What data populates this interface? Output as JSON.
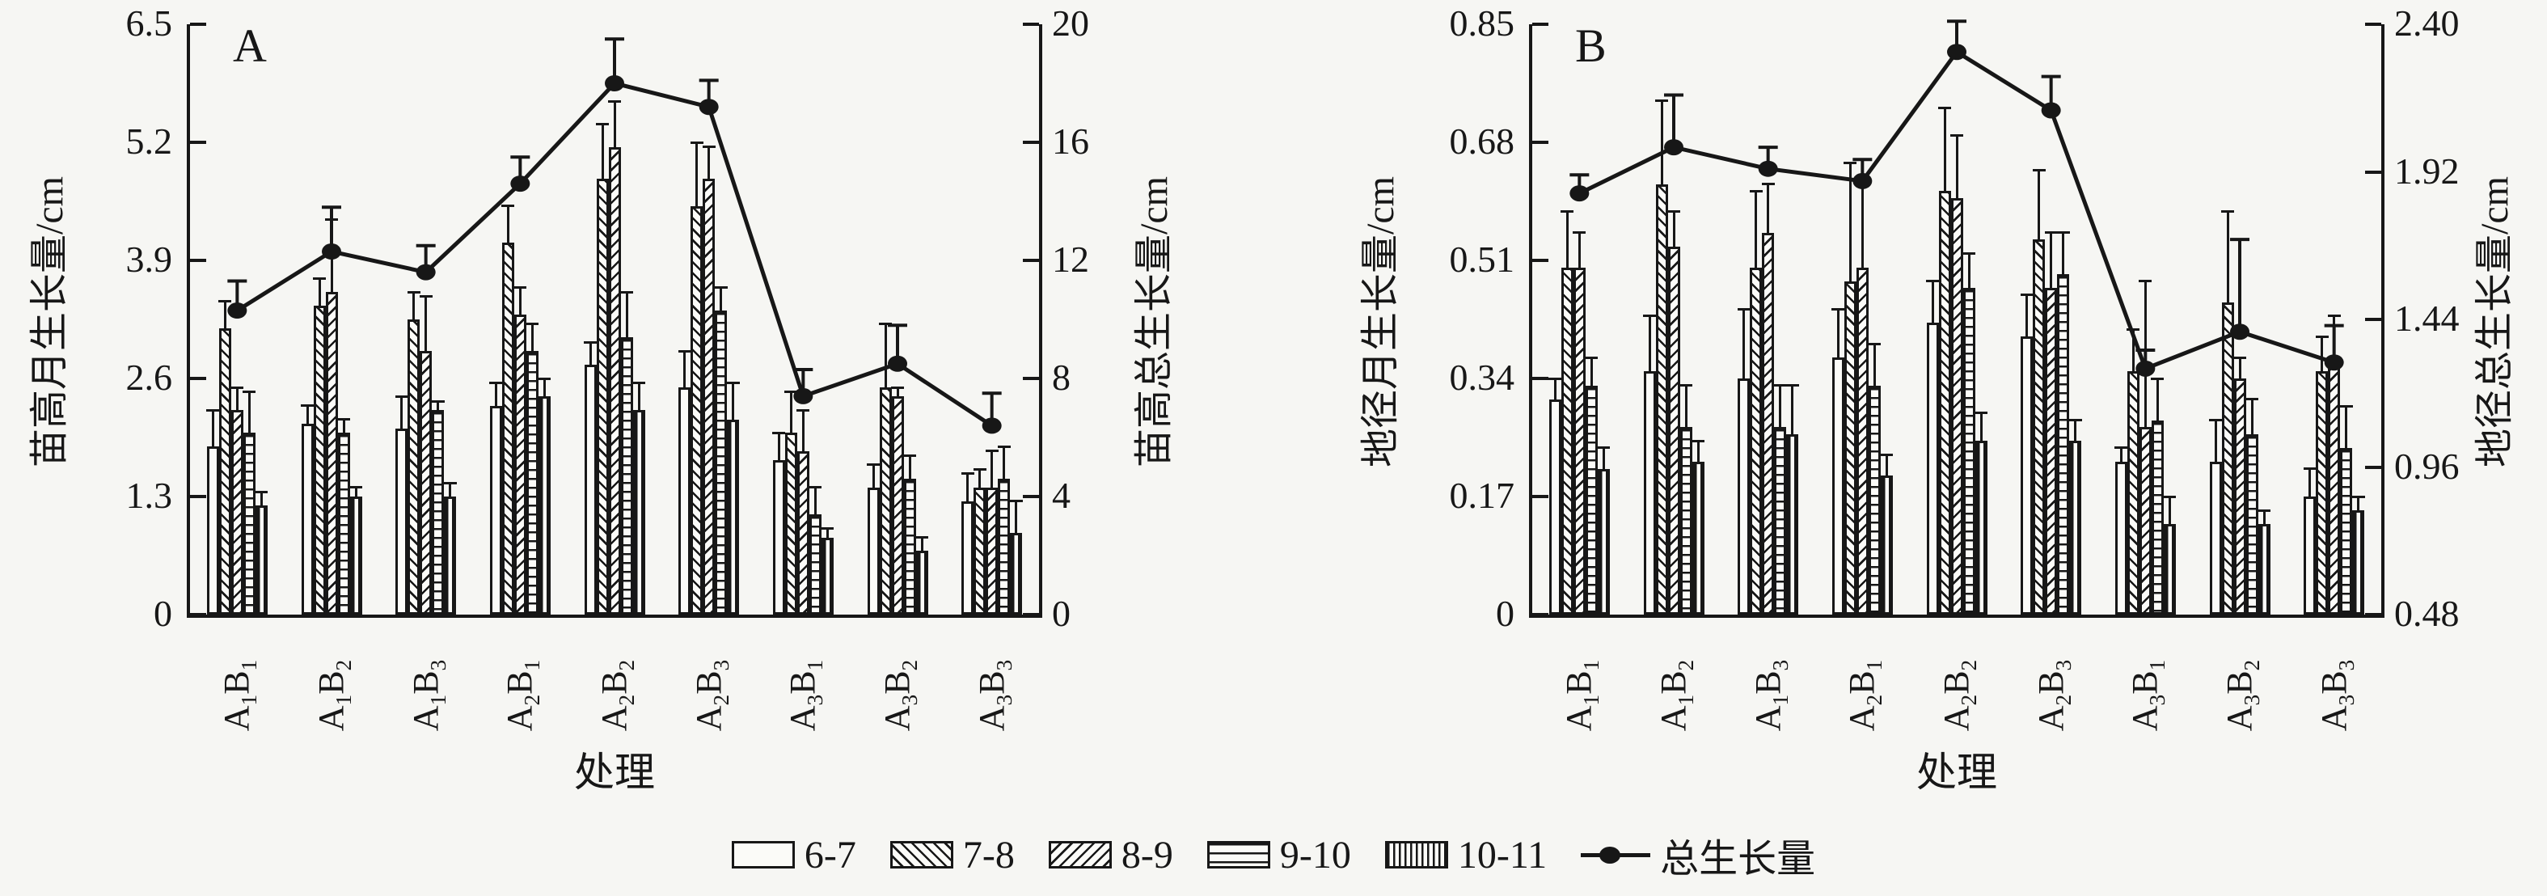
{
  "figure": {
    "background": "#f6f6f3",
    "ink_color": "#171717",
    "legend": {
      "line_label": "总生长量",
      "items": [
        {
          "label": "6-7",
          "pattern": "plain"
        },
        {
          "label": "7-8",
          "pattern": "diagonal-backslash"
        },
        {
          "label": "8-9",
          "pattern": "diagonal-slash"
        },
        {
          "label": "9-10",
          "pattern": "horizontal-lines"
        },
        {
          "label": "10-11",
          "pattern": "vertical-lines"
        }
      ]
    }
  },
  "chart_data": [
    {
      "type": "bar",
      "panel": "A",
      "title": "A",
      "xlabel": "处理",
      "categories": [
        "A1B1",
        "A1B2",
        "A1B3",
        "A2B1",
        "A2B2",
        "A2B3",
        "A3B1",
        "A3B2",
        "A3B3"
      ],
      "left_axis": {
        "label": "苗高月生长量/cm",
        "min": 0,
        "max": 6.5,
        "ticks": [
          "6.5",
          "5.2",
          "3.9",
          "2.6",
          "1.3",
          "0"
        ]
      },
      "right_axis": {
        "label": "苗高总生长量/cm",
        "min": 0,
        "max": 20,
        "ticks": [
          "20",
          "16",
          "12",
          "8",
          "4",
          "0"
        ]
      },
      "series": [
        {
          "name": "6-7",
          "values": [
            1.85,
            2.1,
            2.05,
            2.3,
            2.75,
            2.5,
            1.7,
            1.4,
            1.25
          ],
          "errors": [
            0.4,
            0.2,
            0.35,
            0.25,
            0.25,
            0.4,
            0.3,
            0.25,
            0.3
          ]
        },
        {
          "name": "7-8",
          "values": [
            3.15,
            3.4,
            3.25,
            4.1,
            4.8,
            4.5,
            2.0,
            2.5,
            1.4
          ],
          "errors": [
            0.3,
            0.3,
            0.3,
            0.4,
            0.6,
            0.7,
            0.45,
            0.7,
            0.2
          ]
        },
        {
          "name": "8-9",
          "values": [
            2.25,
            3.55,
            2.9,
            3.3,
            5.15,
            4.8,
            1.8,
            2.4,
            1.4
          ],
          "errors": [
            0.25,
            0.8,
            0.6,
            0.3,
            0.5,
            0.35,
            0.45,
            0.1,
            0.4
          ]
        },
        {
          "name": "9-10",
          "values": [
            2.0,
            2.0,
            2.25,
            2.9,
            3.05,
            3.35,
            1.1,
            1.5,
            1.5
          ],
          "errors": [
            0.45,
            0.15,
            0.1,
            0.3,
            0.5,
            0.25,
            0.3,
            0.25,
            0.35
          ]
        },
        {
          "name": "10-11",
          "values": [
            1.2,
            1.3,
            1.3,
            2.4,
            2.25,
            2.15,
            0.85,
            0.7,
            0.9
          ],
          "errors": [
            0.15,
            0.1,
            0.15,
            0.2,
            0.3,
            0.4,
            0.1,
            0.15,
            0.35
          ]
        }
      ],
      "line": {
        "name": "总生长量",
        "axis": "right",
        "values": [
          10.3,
          12.3,
          11.6,
          14.6,
          18.0,
          17.2,
          7.4,
          8.5,
          6.4
        ],
        "errors": [
          1.0,
          1.5,
          0.9,
          0.9,
          1.5,
          0.9,
          0.9,
          1.3,
          1.1
        ]
      }
    },
    {
      "type": "bar",
      "panel": "B",
      "title": "B",
      "xlabel": "处理",
      "categories": [
        "A1B1",
        "A1B2",
        "A1B3",
        "A2B1",
        "A2B2",
        "A2B3",
        "A3B1",
        "A3B2",
        "A3B3"
      ],
      "left_axis": {
        "label": "地径月生长量/cm",
        "min": 0,
        "max": 0.85,
        "ticks": [
          "0.85",
          "0.68",
          "0.51",
          "0.34",
          "0.17",
          "0"
        ]
      },
      "right_axis": {
        "label": "地径总生长量/cm",
        "min": 0.48,
        "max": 2.4,
        "ticks": [
          "2.40",
          "1.92",
          "1.44",
          "0.96",
          "0.48"
        ]
      },
      "series": [
        {
          "name": "6-7",
          "values": [
            0.31,
            0.35,
            0.34,
            0.37,
            0.42,
            0.4,
            0.22,
            0.22,
            0.17
          ],
          "errors": [
            0.03,
            0.08,
            0.1,
            0.07,
            0.06,
            0.06,
            0.02,
            0.06,
            0.04
          ]
        },
        {
          "name": "7-8",
          "values": [
            0.5,
            0.62,
            0.5,
            0.48,
            0.61,
            0.54,
            0.35,
            0.45,
            0.35
          ],
          "errors": [
            0.08,
            0.12,
            0.11,
            0.17,
            0.12,
            0.1,
            0.06,
            0.13,
            0.05
          ]
        },
        {
          "name": "8-9",
          "values": [
            0.5,
            0.53,
            0.55,
            0.5,
            0.6,
            0.47,
            0.27,
            0.34,
            0.37
          ],
          "errors": [
            0.05,
            0.05,
            0.07,
            0.12,
            0.09,
            0.08,
            0.21,
            0.03,
            0.06
          ]
        },
        {
          "name": "9-10",
          "values": [
            0.33,
            0.27,
            0.27,
            0.33,
            0.47,
            0.49,
            0.28,
            0.26,
            0.24
          ],
          "errors": [
            0.04,
            0.06,
            0.06,
            0.06,
            0.05,
            0.06,
            0.06,
            0.05,
            0.06
          ]
        },
        {
          "name": "10-11",
          "values": [
            0.21,
            0.22,
            0.26,
            0.2,
            0.25,
            0.25,
            0.13,
            0.13,
            0.15
          ],
          "errors": [
            0.03,
            0.03,
            0.07,
            0.03,
            0.04,
            0.03,
            0.04,
            0.02,
            0.02
          ]
        }
      ],
      "line": {
        "name": "总生长量",
        "axis": "right",
        "values": [
          1.85,
          2.0,
          1.93,
          1.89,
          2.31,
          2.12,
          1.28,
          1.4,
          1.3
        ],
        "errors": [
          0.06,
          0.17,
          0.07,
          0.07,
          0.1,
          0.11,
          0.06,
          0.3,
          0.12
        ]
      }
    }
  ]
}
